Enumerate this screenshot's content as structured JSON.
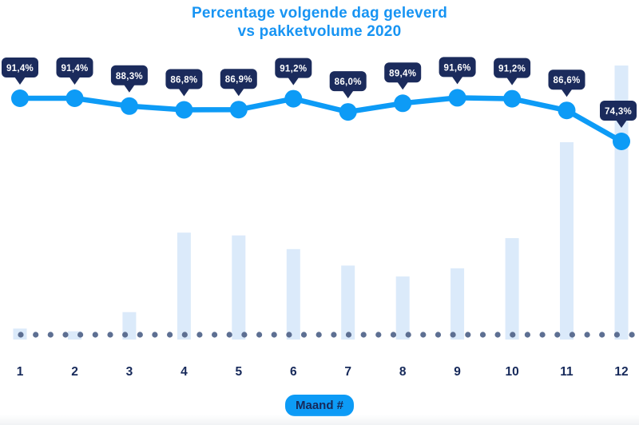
{
  "title": {
    "line1": "Percentage volgende dag geleverd",
    "line2": "vs pakketvolume 2020"
  },
  "xaxis_badge": "Maand #",
  "colors": {
    "accent_blue": "#0d9bf6",
    "title_blue": "#1794f3",
    "tooltip_navy": "#1b2b5c",
    "bar_fill": "#dbeafa",
    "dot_slate": "#5d6f92",
    "navy_text": "#16295a",
    "tooltip_text": "#ffffff",
    "background": "#ffffff"
  },
  "chart_data": {
    "type": "line+bar combo",
    "title": "Percentage volgende dag geleverd vs pakketvolume 2020",
    "xlabel": "Maand #",
    "ylabel": "",
    "y_axis": "hidden (values shown as data labels only)",
    "baseline_style": "dotted",
    "legend": "none",
    "categories": [
      "1",
      "2",
      "3",
      "4",
      "5",
      "6",
      "7",
      "8",
      "9",
      "10",
      "11",
      "12"
    ],
    "series": [
      {
        "name": "Percentage volgende dag geleverd",
        "type": "line",
        "unit": "%",
        "values": [
          91.4,
          91.4,
          88.3,
          86.8,
          86.9,
          91.2,
          86.0,
          89.4,
          91.6,
          91.2,
          86.6,
          74.3
        ],
        "labels": [
          "91,4%",
          "91,4%",
          "88,3%",
          "86,8%",
          "86,9%",
          "91,2%",
          "86,0%",
          "89,4%",
          "91,6%",
          "91,2%",
          "86,6%",
          "74,3%"
        ]
      },
      {
        "name": "Pakketvolume 2020",
        "type": "bar",
        "unit": "relative volume, % of max (estimated from bar heights, no value axis shown)",
        "values": [
          4,
          3,
          10,
          39,
          38,
          33,
          27,
          23,
          26,
          37,
          72,
          100
        ]
      }
    ]
  }
}
